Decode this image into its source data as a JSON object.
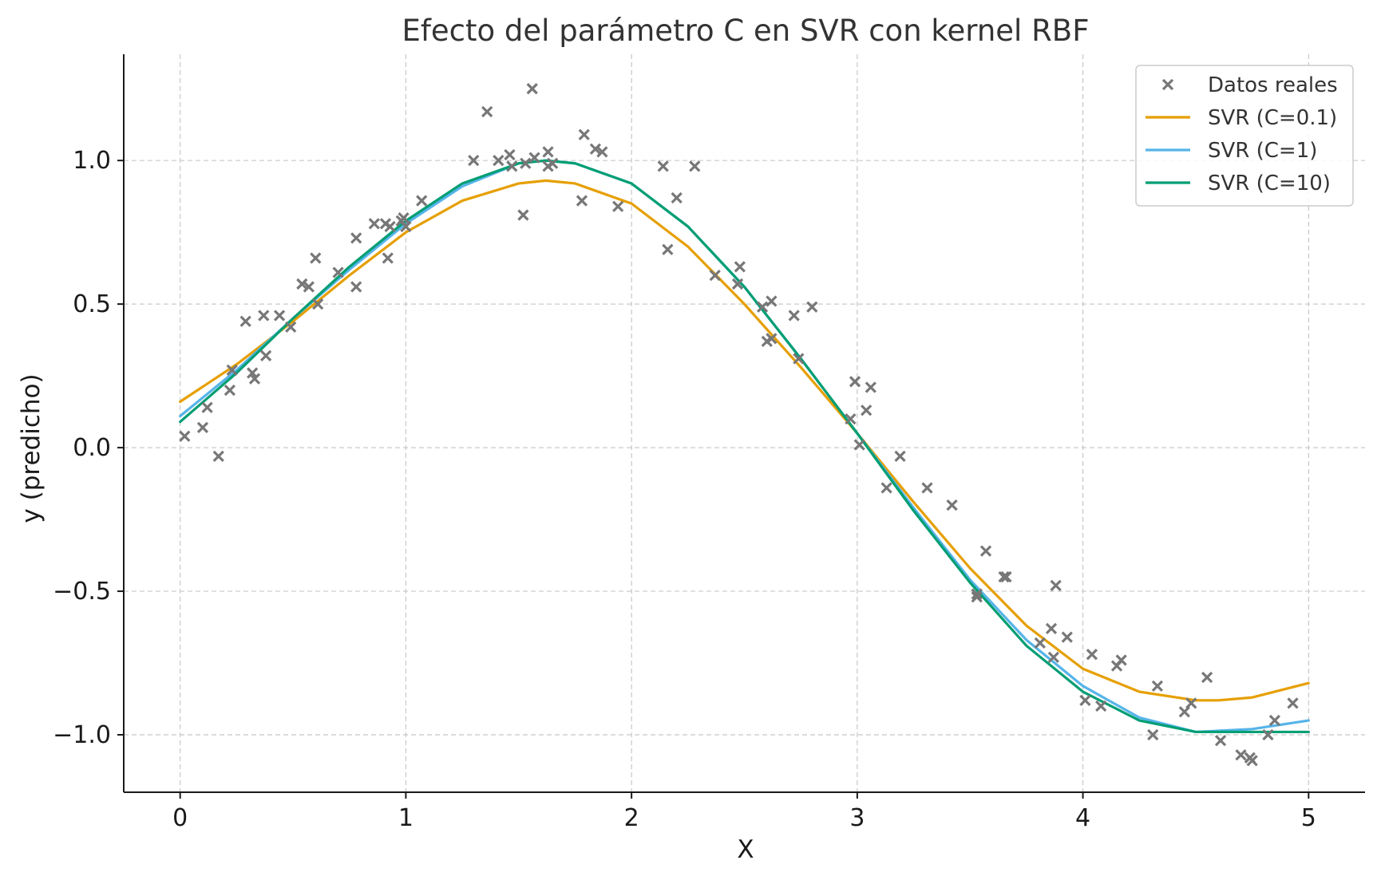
{
  "chart_data": {
    "type": "scatter",
    "title": "Efecto del parámetro C en SVR con kernel RBF",
    "xlabel": "X",
    "ylabel": "y (predicho)",
    "xlim": [
      -0.25,
      5.25
    ],
    "ylim": [
      -1.2,
      1.37
    ],
    "x_ticks": [
      0,
      1,
      2,
      3,
      4,
      5
    ],
    "x_tick_labels": [
      "0",
      "1",
      "2",
      "3",
      "4",
      "5"
    ],
    "y_ticks": [
      -1.0,
      -0.5,
      0.0,
      0.5,
      1.0
    ],
    "y_tick_labels": [
      "−1.0",
      "−0.5",
      "0.0",
      "0.5",
      "1.0"
    ],
    "grid": true,
    "legend_position": "top-right",
    "scatter": {
      "name": "Datos reales",
      "color": "#777777",
      "marker": "x",
      "points": [
        [
          0.02,
          0.04
        ],
        [
          0.1,
          0.07
        ],
        [
          0.12,
          0.14
        ],
        [
          0.17,
          -0.03
        ],
        [
          0.22,
          0.2
        ],
        [
          0.23,
          0.27
        ],
        [
          0.29,
          0.44
        ],
        [
          0.32,
          0.26
        ],
        [
          0.33,
          0.24
        ],
        [
          0.37,
          0.46
        ],
        [
          0.38,
          0.32
        ],
        [
          0.44,
          0.46
        ],
        [
          0.49,
          0.42
        ],
        [
          0.54,
          0.57
        ],
        [
          0.57,
          0.56
        ],
        [
          0.6,
          0.66
        ],
        [
          0.61,
          0.5
        ],
        [
          0.7,
          0.61
        ],
        [
          0.78,
          0.73
        ],
        [
          0.78,
          0.56
        ],
        [
          0.86,
          0.78
        ],
        [
          0.91,
          0.78
        ],
        [
          0.92,
          0.66
        ],
        [
          0.93,
          0.77
        ],
        [
          0.98,
          0.79
        ],
        [
          0.99,
          0.8
        ],
        [
          1.0,
          0.77
        ],
        [
          1.07,
          0.86
        ],
        [
          1.3,
          1.0
        ],
        [
          1.36,
          1.17
        ],
        [
          1.41,
          1.0
        ],
        [
          1.46,
          1.02
        ],
        [
          1.47,
          0.98
        ],
        [
          1.52,
          0.81
        ],
        [
          1.53,
          0.99
        ],
        [
          1.56,
          1.25
        ],
        [
          1.57,
          1.01
        ],
        [
          1.63,
          1.03
        ],
        [
          1.63,
          0.98
        ],
        [
          1.65,
          0.99
        ],
        [
          1.78,
          0.86
        ],
        [
          1.79,
          1.09
        ],
        [
          1.84,
          1.04
        ],
        [
          1.87,
          1.03
        ],
        [
          1.94,
          0.84
        ],
        [
          2.14,
          0.98
        ],
        [
          2.16,
          0.69
        ],
        [
          2.2,
          0.87
        ],
        [
          2.28,
          0.98
        ],
        [
          2.37,
          0.6
        ],
        [
          2.47,
          0.57
        ],
        [
          2.48,
          0.63
        ],
        [
          2.58,
          0.49
        ],
        [
          2.6,
          0.37
        ],
        [
          2.62,
          0.38
        ],
        [
          2.62,
          0.51
        ],
        [
          2.72,
          0.46
        ],
        [
          2.74,
          0.31
        ],
        [
          2.8,
          0.49
        ],
        [
          2.97,
          0.1
        ],
        [
          2.99,
          0.23
        ],
        [
          3.01,
          0.01
        ],
        [
          3.04,
          0.13
        ],
        [
          3.06,
          0.21
        ],
        [
          3.13,
          -0.14
        ],
        [
          3.19,
          -0.03
        ],
        [
          3.31,
          -0.14
        ],
        [
          3.42,
          -0.2
        ],
        [
          3.53,
          -0.51
        ],
        [
          3.53,
          -0.52
        ],
        [
          3.57,
          -0.36
        ],
        [
          3.65,
          -0.45
        ],
        [
          3.66,
          -0.45
        ],
        [
          3.81,
          -0.68
        ],
        [
          3.86,
          -0.63
        ],
        [
          3.87,
          -0.73
        ],
        [
          3.88,
          -0.48
        ],
        [
          3.93,
          -0.66
        ],
        [
          4.01,
          -0.88
        ],
        [
          4.04,
          -0.72
        ],
        [
          4.08,
          -0.9
        ],
        [
          4.15,
          -0.76
        ],
        [
          4.17,
          -0.74
        ],
        [
          4.31,
          -1.0
        ],
        [
          4.33,
          -0.83
        ],
        [
          4.45,
          -0.92
        ],
        [
          4.48,
          -0.89
        ],
        [
          4.55,
          -0.8
        ],
        [
          4.61,
          -1.02
        ],
        [
          4.7,
          -1.07
        ],
        [
          4.74,
          -1.08
        ],
        [
          4.75,
          -1.09
        ],
        [
          4.82,
          -1.0
        ],
        [
          4.85,
          -0.95
        ],
        [
          4.93,
          -0.89
        ]
      ]
    },
    "series": [
      {
        "name": "SVR (C=0.1)",
        "color": "#E69F00",
        "x": [
          0.0,
          0.25,
          0.5,
          0.75,
          1.0,
          1.25,
          1.5,
          1.62,
          1.75,
          2.0,
          2.25,
          2.5,
          2.75,
          3.0,
          3.25,
          3.5,
          3.75,
          4.0,
          4.25,
          4.5,
          4.6,
          4.75,
          5.0
        ],
        "y": [
          0.16,
          0.29,
          0.44,
          0.6,
          0.75,
          0.86,
          0.92,
          0.93,
          0.92,
          0.85,
          0.7,
          0.5,
          0.28,
          0.05,
          -0.19,
          -0.42,
          -0.62,
          -0.77,
          -0.85,
          -0.88,
          -0.88,
          -0.87,
          -0.82
        ]
      },
      {
        "name": "SVR (C=1)",
        "color": "#56B4E9",
        "x": [
          0.0,
          0.25,
          0.5,
          0.75,
          1.0,
          1.25,
          1.5,
          1.62,
          1.75,
          2.0,
          2.25,
          2.5,
          2.75,
          3.0,
          3.25,
          3.5,
          3.75,
          4.0,
          4.25,
          4.5,
          4.75,
          5.0
        ],
        "y": [
          0.11,
          0.27,
          0.45,
          0.62,
          0.78,
          0.91,
          0.99,
          1.0,
          0.99,
          0.92,
          0.77,
          0.56,
          0.31,
          0.05,
          -0.21,
          -0.46,
          -0.67,
          -0.83,
          -0.94,
          -0.99,
          -0.98,
          -0.95
        ]
      },
      {
        "name": "SVR (C=10)",
        "color": "#009E73",
        "x": [
          0.0,
          0.25,
          0.5,
          0.75,
          1.0,
          1.25,
          1.5,
          1.62,
          1.75,
          2.0,
          2.25,
          2.5,
          2.75,
          3.0,
          3.25,
          3.5,
          3.75,
          4.0,
          4.25,
          4.5,
          4.75,
          5.0
        ],
        "y": [
          0.09,
          0.26,
          0.45,
          0.63,
          0.79,
          0.92,
          0.99,
          1.0,
          0.99,
          0.92,
          0.77,
          0.56,
          0.31,
          0.05,
          -0.22,
          -0.47,
          -0.69,
          -0.85,
          -0.95,
          -0.99,
          -0.99,
          -0.99
        ]
      }
    ]
  }
}
